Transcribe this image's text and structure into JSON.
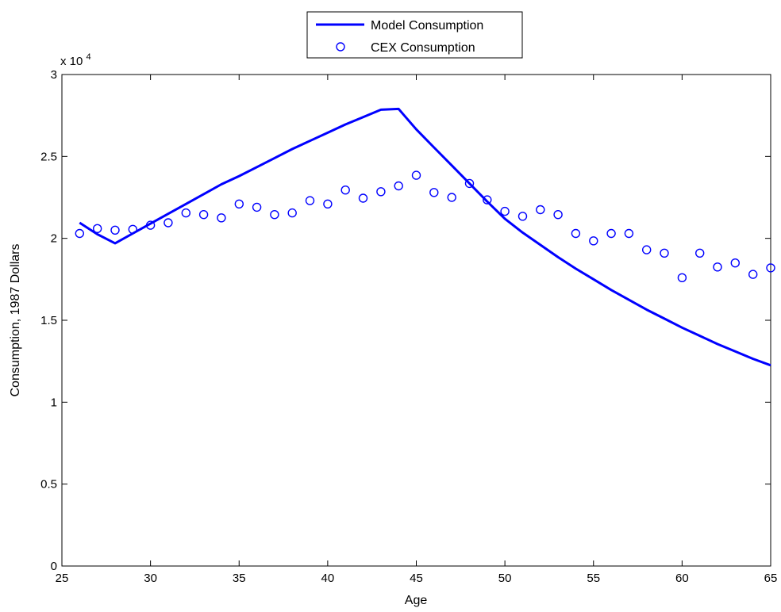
{
  "chart_data": {
    "type": "line",
    "xlabel": "Age",
    "ylabel": "Consumption, 1987 Dollars",
    "y_multiplier_label": "x 10",
    "y_multiplier_exponent": "4",
    "xlim": [
      25,
      65
    ],
    "ylim": [
      0,
      30000
    ],
    "x_ticks": [
      25,
      30,
      35,
      40,
      45,
      50,
      55,
      60,
      65
    ],
    "y_ticks": [
      0,
      5000,
      10000,
      15000,
      20000,
      25000,
      30000
    ],
    "y_tick_labels": [
      "0",
      "0.5",
      "1",
      "1.5",
      "2",
      "2.5",
      "3"
    ],
    "grid": false,
    "legend_position": "top-center-outside",
    "series": [
      {
        "name": "Model Consumption",
        "style": "line",
        "color": "#0000ff",
        "x": [
          26,
          27,
          28,
          29,
          30,
          31,
          32,
          33,
          34,
          35,
          36,
          37,
          38,
          39,
          40,
          41,
          42,
          43,
          44,
          45,
          46,
          47,
          48,
          49,
          50,
          51,
          52,
          53,
          54,
          55,
          56,
          57,
          58,
          59,
          60,
          61,
          62,
          63,
          64,
          65
        ],
        "y": [
          20950,
          20250,
          19700,
          20300,
          20900,
          21500,
          22100,
          22700,
          23300,
          23800,
          24350,
          24900,
          25450,
          25950,
          26450,
          26950,
          27400,
          27850,
          27900,
          26650,
          25550,
          24450,
          23350,
          22250,
          21200,
          20350,
          19600,
          18850,
          18150,
          17500,
          16850,
          16250,
          15650,
          15100,
          14550,
          14050,
          13550,
          13100,
          12650,
          12250
        ]
      },
      {
        "name": "CEX Consumption",
        "style": "markers",
        "marker": "circle",
        "color": "#0000ff",
        "x": [
          26,
          27,
          28,
          29,
          30,
          31,
          32,
          33,
          34,
          35,
          36,
          37,
          38,
          39,
          40,
          41,
          42,
          43,
          44,
          45,
          46,
          47,
          48,
          49,
          50,
          51,
          52,
          53,
          54,
          55,
          56,
          57,
          58,
          59,
          60,
          61,
          62,
          63,
          64,
          65
        ],
        "y": [
          20300,
          20600,
          20500,
          20550,
          20800,
          20950,
          21550,
          21450,
          21250,
          22100,
          21900,
          21450,
          21550,
          22300,
          22100,
          22950,
          22450,
          22850,
          23200,
          23850,
          22800,
          22500,
          23350,
          22350,
          21650,
          21350,
          21750,
          21450,
          20300,
          19850,
          20300,
          20300,
          19300,
          19100,
          17600,
          19100,
          18250,
          18500,
          17800,
          18200
        ]
      }
    ]
  }
}
